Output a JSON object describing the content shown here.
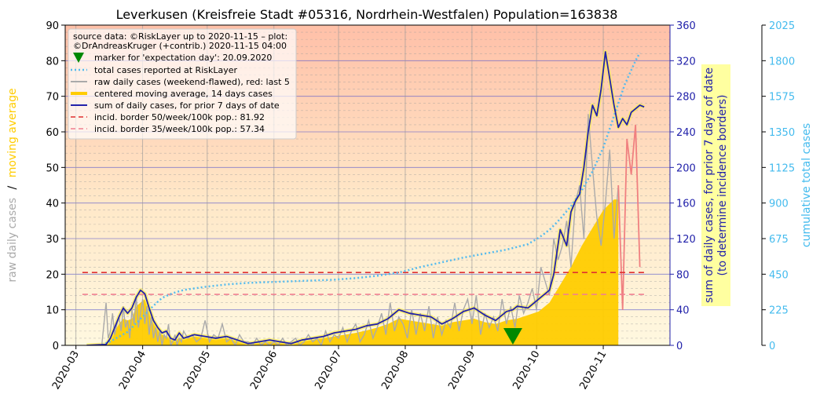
{
  "chart_data": {
    "type": "line",
    "title": "Leverkusen (Kreisfreie Stadt #05316, Nordrhein-Westfalen) Population=163838",
    "left_ylabel_parts": [
      "raw daily cases",
      "/",
      "moving average"
    ],
    "right_ylabel_lines": [
      "sum of daily cases, for prior 7 days of date",
      "(to determine incidence borders)"
    ],
    "far_right_ylabel": "cumulative total cases",
    "x_ticks": [
      "2020-03",
      "2020-04",
      "2020-05",
      "2020-06",
      "2020-07",
      "2020-08",
      "2020-09",
      "2020-10",
      "2020-11"
    ],
    "x_tick_days": [
      0,
      31,
      61,
      92,
      122,
      153,
      184,
      214,
      245
    ],
    "xlim": [
      -5,
      276
    ],
    "left_ylim": [
      0,
      90
    ],
    "left_ticks": [
      0,
      10,
      20,
      30,
      40,
      50,
      60,
      70,
      80,
      90
    ],
    "right_ylim": [
      0,
      360
    ],
    "right_ticks": [
      0,
      40,
      80,
      120,
      160,
      200,
      240,
      280,
      320,
      360
    ],
    "far_right_ylim": [
      0,
      2025
    ],
    "far_right_ticks": [
      0,
      225,
      450,
      675,
      900,
      1125,
      1350,
      1575,
      1800,
      2025
    ],
    "legend": {
      "source_line1": "source data: ©RiskLayer up to 2020-11-15 – plot:",
      "source_line2": "©DrAndreasKruger (+contrib.) 2020-11-15 04:00",
      "items": [
        "marker for 'expectation day': 20.09.2020",
        "total cases reported at RiskLayer",
        "raw daily cases (weekend-flawed), red: last 5",
        "centered moving average, 14 days cases",
        "sum of daily cases, for prior 7 days of date",
        "incid. border 50/week/100k pop.: 81.92",
        "incid. border 35/week/100k pop.: 57.34"
      ]
    },
    "incidence_borders_weekly": [
      81.92,
      57.34
    ],
    "expectation_day": 203,
    "colors": {
      "raw": "#aaaaaa",
      "raw_last5": "#f08080",
      "moving_avg": "#ffcc00",
      "weekly_sum": "#2222aa",
      "total": "#55bbee",
      "border50": "#e03030",
      "border35": "#f08090",
      "marker": "#008800",
      "left_axis_label_gray": "#aaaaaa",
      "left_axis_label_gold": "#ffcc00",
      "right_axis": "#2222aa",
      "far_right_axis": "#44bbee"
    },
    "series": {
      "weekly_sum": {
        "x": [
          5,
          14,
          16,
          18,
          20,
          22,
          24,
          26,
          28,
          30,
          32,
          34,
          36,
          38,
          40,
          42,
          44,
          46,
          48,
          50,
          55,
          60,
          65,
          70,
          75,
          80,
          85,
          90,
          95,
          100,
          105,
          110,
          115,
          120,
          125,
          130,
          135,
          140,
          145,
          150,
          155,
          160,
          165,
          170,
          175,
          180,
          185,
          190,
          195,
          200,
          203,
          205,
          210,
          215,
          220,
          222,
          225,
          228,
          230,
          232,
          234,
          236,
          238,
          240,
          242,
          244,
          246,
          248,
          250,
          252,
          254,
          256,
          258,
          260,
          262,
          264
        ],
        "y": [
          0,
          1,
          8,
          20,
          32,
          42,
          36,
          42,
          54,
          62,
          58,
          42,
          28,
          20,
          14,
          16,
          8,
          6,
          14,
          8,
          12,
          10,
          8,
          10,
          6,
          2,
          4,
          6,
          4,
          2,
          6,
          8,
          10,
          14,
          16,
          18,
          22,
          24,
          30,
          40,
          36,
          34,
          32,
          24,
          30,
          38,
          42,
          34,
          28,
          38,
          40,
          44,
          42,
          52,
          62,
          80,
          130,
          112,
          150,
          162,
          170,
          200,
          240,
          270,
          258,
          288,
          330,
          300,
          270,
          245,
          255,
          248,
          262,
          266,
          270,
          268
        ]
      },
      "moving_avg": {
        "x": [
          5,
          14,
          16,
          18,
          20,
          22,
          24,
          26,
          28,
          30,
          32,
          34,
          36,
          38,
          40,
          42,
          44,
          46,
          48,
          50,
          55,
          60,
          65,
          70,
          75,
          80,
          85,
          90,
          95,
          100,
          105,
          110,
          115,
          120,
          125,
          130,
          135,
          140,
          145,
          150,
          155,
          160,
          165,
          170,
          175,
          180,
          185,
          190,
          195,
          200,
          205,
          210,
          215,
          220,
          225,
          230,
          235,
          240,
          245,
          250,
          252
        ],
        "y": [
          0,
          0.2,
          2,
          4,
          6,
          7.5,
          7,
          7.5,
          11,
          12,
          13,
          10,
          7,
          5,
          3,
          2.5,
          2,
          1.5,
          2,
          2,
          2.5,
          2.2,
          2,
          2,
          1.4,
          0.5,
          0.8,
          1,
          0.8,
          0.8,
          1.2,
          1.6,
          2,
          2.5,
          3,
          3.5,
          4.2,
          5,
          6,
          7.5,
          7,
          6.5,
          6,
          5.5,
          6.5,
          7,
          7.5,
          6.5,
          6,
          7,
          7.5,
          8.5,
          9.5,
          12,
          17,
          22,
          28,
          33,
          38,
          41,
          41
        ]
      },
      "raw": {
        "x": [
          5,
          12,
          14,
          15,
          16,
          17,
          18,
          19,
          20,
          21,
          22,
          23,
          24,
          25,
          26,
          27,
          28,
          29,
          30,
          31,
          32,
          33,
          34,
          35,
          36,
          37,
          38,
          39,
          40,
          41,
          42,
          43,
          44,
          45,
          46,
          47,
          48,
          49,
          50,
          52,
          54,
          56,
          58,
          60,
          62,
          64,
          66,
          68,
          70,
          72,
          74,
          76,
          78,
          80,
          82,
          84,
          86,
          88,
          90,
          92,
          94,
          96,
          98,
          100,
          102,
          104,
          106,
          108,
          110,
          112,
          114,
          116,
          118,
          120,
          122,
          124,
          126,
          128,
          130,
          132,
          134,
          136,
          138,
          140,
          142,
          144,
          146,
          148,
          150,
          152,
          154,
          156,
          158,
          160,
          162,
          164,
          166,
          168,
          170,
          172,
          174,
          176,
          178,
          180,
          182,
          184,
          186,
          188,
          190,
          192,
          194,
          196,
          198,
          200,
          202,
          204,
          206,
          208,
          210,
          212,
          214,
          216,
          218,
          220,
          222,
          224,
          226,
          228,
          230,
          232,
          234,
          236,
          238,
          240,
          242,
          244,
          246,
          248,
          250,
          252
        ],
        "y": [
          0,
          0,
          12,
          2,
          4,
          9,
          3,
          6,
          8,
          4,
          11,
          5,
          7,
          2,
          10,
          6,
          14,
          5,
          9,
          13,
          6,
          11,
          3,
          8,
          2,
          5,
          1,
          4,
          0,
          3,
          2,
          6,
          0,
          1,
          3,
          0,
          2,
          1,
          4,
          2,
          3,
          1,
          2,
          7,
          1,
          3,
          2,
          6,
          1,
          2,
          0,
          3,
          1,
          1,
          0,
          2,
          0,
          1,
          0,
          1,
          0,
          2,
          0,
          1,
          2,
          0,
          1,
          3,
          1,
          2,
          0,
          4,
          1,
          3,
          2,
          5,
          1,
          4,
          6,
          1,
          3,
          7,
          2,
          5,
          9,
          3,
          12,
          4,
          8,
          6,
          2,
          10,
          3,
          9,
          4,
          11,
          2,
          8,
          3,
          7,
          5,
          12,
          4,
          10,
          13,
          6,
          14,
          3,
          9,
          5,
          8,
          4,
          13,
          6,
          11,
          5,
          14,
          9,
          12,
          16,
          10,
          22,
          18,
          14,
          30,
          24,
          28,
          35,
          22,
          40,
          45,
          30,
          65,
          50,
          36,
          28,
          40,
          55,
          30,
          45
        ]
      },
      "raw_last5": {
        "x": [
          252,
          254,
          256,
          258,
          260,
          262
        ],
        "y": [
          45,
          10,
          58,
          48,
          62,
          22
        ]
      },
      "total": {
        "x": [
          12,
          16,
          20,
          24,
          28,
          32,
          36,
          40,
          45,
          50,
          60,
          70,
          80,
          90,
          100,
          110,
          120,
          130,
          140,
          150,
          160,
          170,
          180,
          190,
          200,
          210,
          215,
          220,
          225,
          230,
          235,
          240,
          245,
          250,
          255,
          260,
          262
        ],
        "y": [
          2,
          25,
          55,
          85,
          140,
          195,
          250,
          300,
          330,
          350,
          370,
          385,
          395,
          400,
          405,
          410,
          415,
          425,
          440,
          460,
          495,
          525,
          555,
          580,
          605,
          640,
          680,
          730,
          800,
          880,
          980,
          1100,
          1250,
          1450,
          1650,
          1800,
          1850
        ]
      }
    }
  }
}
